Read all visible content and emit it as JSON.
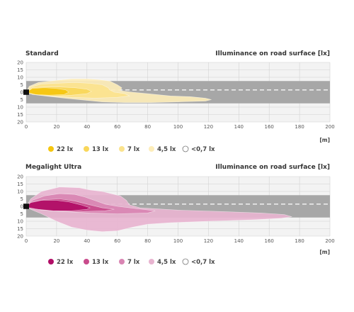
{
  "chart_data": [
    {
      "type": "area",
      "title": "Standard",
      "subtitle": "Illuminance on road surface [lx]",
      "x_unit": "[m]",
      "xlim": [
        0,
        200
      ],
      "ylim": [
        -20,
        20
      ],
      "x_ticks": [
        "0",
        "20",
        "40",
        "60",
        "80",
        "100",
        "120",
        "140",
        "160",
        "180",
        "200"
      ],
      "y_ticks": [
        "20",
        "15",
        "10",
        "5",
        "0",
        "5",
        "10",
        "15",
        "20"
      ],
      "grid": true,
      "legend_position": "bottom",
      "colors": {
        "road": "#a7a7a7",
        "lane_mark": "#ffffff",
        "lx_22": "#f5c60f",
        "lx_13": "#f9d75a",
        "lx_7": "#fbe38d",
        "lx_4_5": "#fdedb9"
      },
      "legend": [
        "22 lx",
        "13 lx",
        "7 lx",
        "4,5 lx",
        "<0,7 lx"
      ],
      "series": [
        {
          "name": "4,5 lx",
          "points": [
            [
              0,
              0
            ],
            [
              2,
              4
            ],
            [
              8,
              6.5
            ],
            [
              20,
              8
            ],
            [
              30,
              9
            ],
            [
              40,
              9
            ],
            [
              48,
              8.5
            ],
            [
              55,
              7.5
            ],
            [
              60,
              5
            ],
            [
              63,
              3
            ],
            [
              62,
              1
            ],
            [
              70,
              0
            ],
            [
              80,
              -1
            ],
            [
              95,
              -2.5
            ],
            [
              108,
              -3
            ],
            [
              118,
              -4
            ],
            [
              122,
              -5
            ],
            [
              118,
              -6
            ],
            [
              100,
              -6.5
            ],
            [
              82,
              -7
            ],
            [
              65,
              -7
            ],
            [
              50,
              -6.5
            ],
            [
              40,
              -5.5
            ],
            [
              25,
              -4
            ],
            [
              12,
              -2.5
            ],
            [
              4,
              -1.5
            ],
            [
              0,
              0
            ]
          ]
        },
        {
          "name": "7 lx",
          "points": [
            [
              0,
              0
            ],
            [
              3,
              3.5
            ],
            [
              10,
              5.5
            ],
            [
              20,
              6
            ],
            [
              32,
              6.5
            ],
            [
              42,
              6
            ],
            [
              50,
              5
            ],
            [
              54,
              3
            ],
            [
              55,
              1.5
            ],
            [
              58,
              0
            ],
            [
              65,
              -1
            ],
            [
              68,
              -2.5
            ],
            [
              60,
              -3.5
            ],
            [
              45,
              -4
            ],
            [
              30,
              -3.5
            ],
            [
              15,
              -2.5
            ],
            [
              5,
              -1.5
            ],
            [
              0,
              0
            ]
          ]
        },
        {
          "name": "13 lx",
          "points": [
            [
              0,
              0
            ],
            [
              4,
              3
            ],
            [
              12,
              3.5
            ],
            [
              22,
              3.5
            ],
            [
              32,
              3
            ],
            [
              40,
              2
            ],
            [
              43,
              0.5
            ],
            [
              40,
              -1
            ],
            [
              30,
              -2
            ],
            [
              18,
              -2.5
            ],
            [
              8,
              -2
            ],
            [
              2,
              -1
            ],
            [
              0,
              0
            ]
          ]
        },
        {
          "name": "22 lx",
          "points": [
            [
              0,
              0
            ],
            [
              4,
              2.5
            ],
            [
              12,
              3
            ],
            [
              20,
              2.5
            ],
            [
              26,
              1.5
            ],
            [
              28,
              0
            ],
            [
              25,
              -1.5
            ],
            [
              15,
              -2
            ],
            [
              6,
              -1.5
            ],
            [
              0,
              0
            ]
          ]
        }
      ]
    },
    {
      "type": "area",
      "title": "Megalight Ultra",
      "subtitle": "Illuminance on road surface [lx]",
      "x_unit": "[m]",
      "xlim": [
        0,
        200
      ],
      "ylim": [
        -20,
        20
      ],
      "x_ticks": [
        "0",
        "20",
        "40",
        "60",
        "80",
        "100",
        "120",
        "140",
        "160",
        "180",
        "200"
      ],
      "y_ticks": [
        "20",
        "15",
        "10",
        "5",
        "0",
        "5",
        "10",
        "15",
        "20"
      ],
      "grid": true,
      "legend_position": "bottom",
      "colors": {
        "road": "#a7a7a7",
        "lane_mark": "#ffffff",
        "lx_22": "#b10d66",
        "lx_13": "#c94b8c",
        "lx_7": "#d985b3",
        "lx_4_5": "#e8b4d0"
      },
      "legend": [
        "22 lx",
        "13 lx",
        "7 lx",
        "4,5 lx",
        "<0,7 lx"
      ],
      "series": [
        {
          "name": "4,5 lx",
          "points": [
            [
              0,
              0
            ],
            [
              3,
              5
            ],
            [
              10,
              10
            ],
            [
              22,
              13
            ],
            [
              35,
              12.5
            ],
            [
              42,
              11
            ],
            [
              50,
              10
            ],
            [
              62,
              7
            ],
            [
              66,
              4
            ],
            [
              68,
              1
            ],
            [
              75,
              -1
            ],
            [
              100,
              -2.5
            ],
            [
              130,
              -3.5
            ],
            [
              155,
              -4.5
            ],
            [
              170,
              -5.5
            ],
            [
              175,
              -7
            ],
            [
              168,
              -8
            ],
            [
              150,
              -9
            ],
            [
              120,
              -10
            ],
            [
              95,
              -11
            ],
            [
              80,
              -12
            ],
            [
              70,
              -14
            ],
            [
              60,
              -16.5
            ],
            [
              50,
              -17
            ],
            [
              40,
              -16
            ],
            [
              30,
              -14
            ],
            [
              20,
              -10
            ],
            [
              10,
              -5
            ],
            [
              3,
              -2
            ],
            [
              0,
              0
            ]
          ]
        },
        {
          "name": "7 lx",
          "points": [
            [
              0,
              0
            ],
            [
              4,
              4
            ],
            [
              12,
              7
            ],
            [
              22,
              8.5
            ],
            [
              32,
              8
            ],
            [
              38,
              6.5
            ],
            [
              45,
              4
            ],
            [
              52,
              1.5
            ],
            [
              60,
              0
            ],
            [
              72,
              -1.5
            ],
            [
              85,
              -3
            ],
            [
              80,
              -4.5
            ],
            [
              60,
              -5
            ],
            [
              42,
              -4.5
            ],
            [
              25,
              -3.5
            ],
            [
              10,
              -2.5
            ],
            [
              3,
              -1
            ],
            [
              0,
              0
            ]
          ]
        },
        {
          "name": "13 lx",
          "points": [
            [
              0,
              0
            ],
            [
              4,
              3
            ],
            [
              12,
              4.5
            ],
            [
              22,
              5
            ],
            [
              32,
              3.5
            ],
            [
              42,
              1
            ],
            [
              50,
              -1
            ],
            [
              58,
              -2
            ],
            [
              52,
              -3
            ],
            [
              35,
              -3.5
            ],
            [
              18,
              -3
            ],
            [
              6,
              -2
            ],
            [
              0,
              0
            ]
          ]
        },
        {
          "name": "22 lx",
          "points": [
            [
              0,
              0
            ],
            [
              3,
              2.5
            ],
            [
              10,
              4
            ],
            [
              20,
              4
            ],
            [
              28,
              3
            ],
            [
              36,
              1
            ],
            [
              42,
              -1
            ],
            [
              40,
              -2
            ],
            [
              30,
              -3
            ],
            [
              18,
              -3
            ],
            [
              8,
              -2
            ],
            [
              2,
              -1
            ],
            [
              0,
              0
            ]
          ]
        }
      ]
    }
  ]
}
